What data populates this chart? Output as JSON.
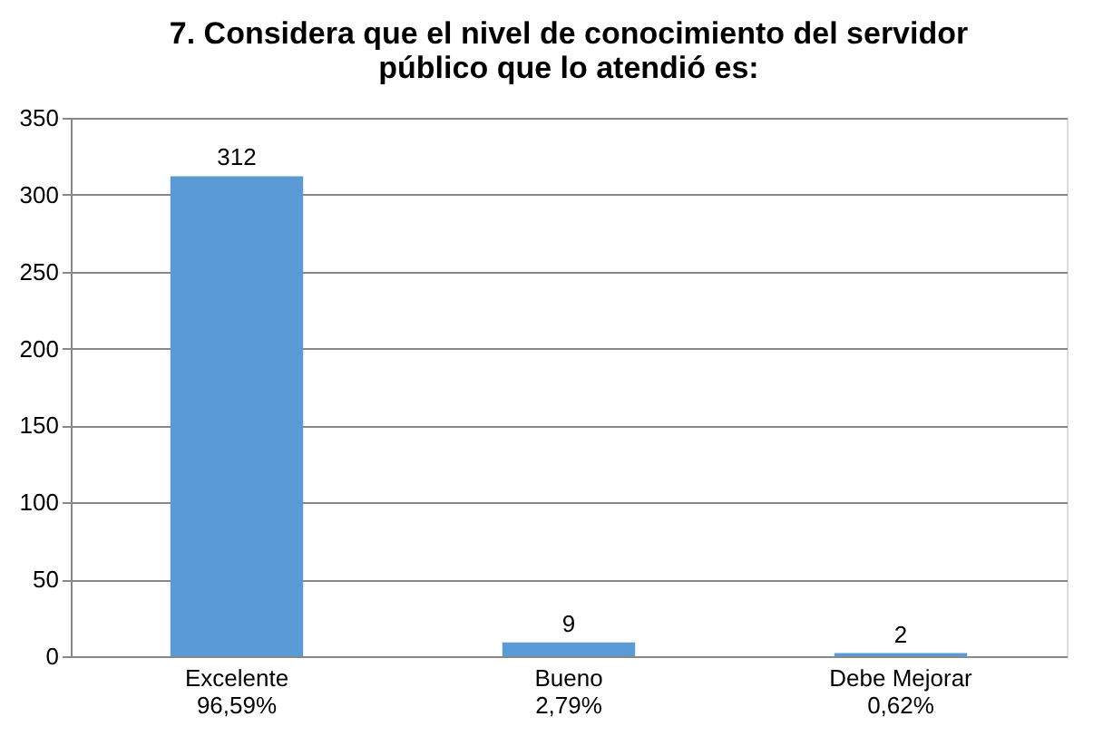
{
  "chart_data": {
    "type": "bar",
    "title": "7. Considera que el nivel de conocimiento del servidor\npúblico que lo atendió es:",
    "categories": [
      "Excelente\n96,59%",
      "Bueno\n2,79%",
      "Debe Mejorar\n0,62%"
    ],
    "values": [
      312,
      9,
      2
    ],
    "color": "#5b9bd5",
    "ylim": [
      0,
      350
    ],
    "yticks": [
      0,
      50,
      100,
      150,
      200,
      250,
      300,
      350
    ],
    "grid": "y",
    "data_labels": true
  }
}
